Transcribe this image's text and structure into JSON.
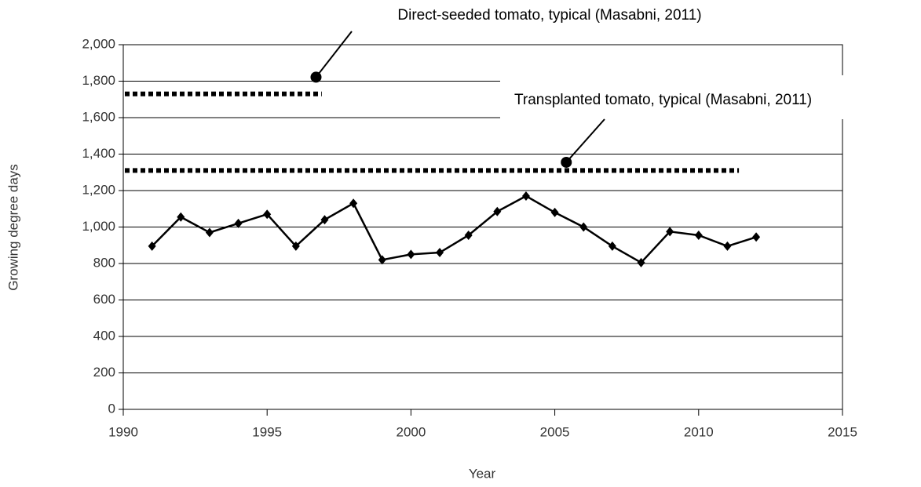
{
  "chart_data": {
    "type": "line",
    "x_label": "Year",
    "y_label": "Growing degree days",
    "x": [
      1991,
      1992,
      1993,
      1994,
      1995,
      1996,
      1997,
      1998,
      1999,
      2000,
      2001,
      2002,
      2003,
      2004,
      2005,
      2006,
      2007,
      2008,
      2009,
      2010,
      2011,
      2012
    ],
    "series": [
      {
        "color": "#000000",
        "values": [
          895,
          1055,
          970,
          1020,
          1070,
          895,
          1040,
          1130,
          820,
          850,
          860,
          955,
          1085,
          1170,
          1080,
          1000,
          895,
          805,
          975,
          955,
          895,
          945
        ]
      }
    ],
    "xlim": [
      1990,
      2015
    ],
    "xticks": [
      1990,
      1995,
      2000,
      2005,
      2010,
      2015
    ],
    "ylim": [
      0,
      2000
    ],
    "yticks": [
      0,
      200,
      400,
      600,
      800,
      {
        "value": 1000,
        "label": "1,000"
      },
      {
        "value": 1200,
        "label": "1,200"
      },
      {
        "value": 1400,
        "label": "1,400"
      },
      {
        "value": 1600,
        "label": "1,600"
      },
      {
        "value": 1800,
        "label": "1,800"
      },
      {
        "value": 2000,
        "label": "2,000"
      }
    ],
    "grid": true,
    "reference_lines": [
      {
        "label": "Direct-seeded tomato, typical (Masabni, 2011)",
        "value": 1730,
        "x_end": 1996.9,
        "marker_x": 1996.7,
        "marker_y": 1822
      },
      {
        "label": "Transplanted tomato, typical (Masabni, 2011)",
        "value": 1310,
        "x_end": 2011.4,
        "marker_x": 2005.4,
        "marker_y": 1355
      }
    ]
  }
}
